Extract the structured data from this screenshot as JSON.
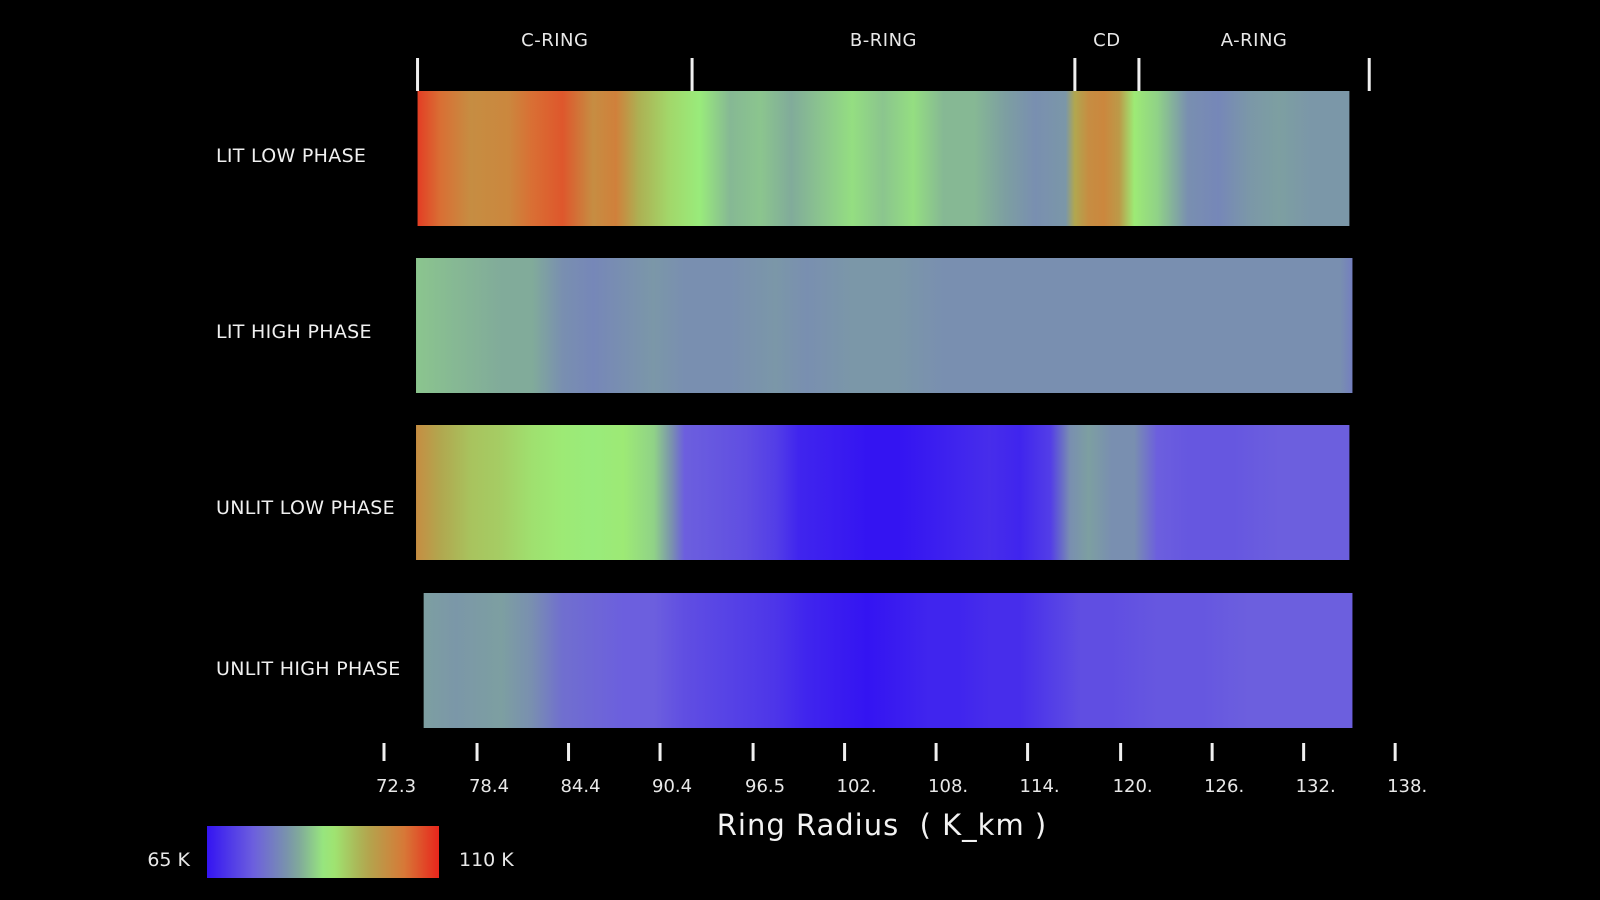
{
  "chart_data": {
    "type": "heatmap",
    "title": "",
    "xlabel": "Ring Radius  ( K_km )",
    "ylabel": "",
    "xlim": [
      72.3,
      138.0
    ],
    "x_ticks": [
      {
        "value": 72.3,
        "label": "72.3"
      },
      {
        "value": 78.4,
        "label": "78.4"
      },
      {
        "value": 84.4,
        "label": "84.4"
      },
      {
        "value": 90.4,
        "label": "90.4"
      },
      {
        "value": 96.5,
        "label": "96.5"
      },
      {
        "value": 102.5,
        "label": "102."
      },
      {
        "value": 108.5,
        "label": "108."
      },
      {
        "value": 114.5,
        "label": "114."
      },
      {
        "value": 120.6,
        "label": "120."
      },
      {
        "value": 126.6,
        "label": "126."
      },
      {
        "value": 132.6,
        "label": "132."
      },
      {
        "value": 138.6,
        "label": "138."
      }
    ],
    "regions": [
      {
        "name": "C-RING",
        "start": 74.5,
        "end": 92.5
      },
      {
        "name": "B-RING",
        "start": 92.5,
        "end": 117.6
      },
      {
        "name": "CD",
        "start": 117.6,
        "end": 121.8
      },
      {
        "name": "A-RING",
        "start": 121.8,
        "end": 136.9
      }
    ],
    "region_boundaries": [
      74.5,
      92.5,
      117.6,
      121.8,
      136.9
    ],
    "colorbar": {
      "min": 65,
      "max": 110,
      "unit": "K",
      "min_label": "65 K",
      "max_label": "110 K"
    },
    "rows": [
      {
        "name": "LIT LOW PHASE",
        "start": 74.5,
        "end": 135.6,
        "profile": [
          [
            74.5,
            108
          ],
          [
            76.0,
            104
          ],
          [
            78.0,
            100
          ],
          [
            80.5,
            101
          ],
          [
            82.0,
            104
          ],
          [
            84.0,
            106
          ],
          [
            86.0,
            100
          ],
          [
            87.5,
            102
          ],
          [
            89.0,
            95
          ],
          [
            91.0,
            91
          ],
          [
            93.0,
            88
          ],
          [
            95.0,
            84
          ],
          [
            97.0,
            85
          ],
          [
            99.0,
            83
          ],
          [
            101.0,
            85
          ],
          [
            103.0,
            87
          ],
          [
            105.0,
            85
          ],
          [
            107.0,
            87
          ],
          [
            109.0,
            84
          ],
          [
            111.0,
            84
          ],
          [
            113.0,
            82
          ],
          [
            115.0,
            80
          ],
          [
            117.0,
            81
          ],
          [
            117.6,
            96
          ],
          [
            118.5,
            100
          ],
          [
            119.5,
            101
          ],
          [
            120.5,
            98
          ],
          [
            121.5,
            89
          ],
          [
            123.0,
            86
          ],
          [
            125.0,
            80
          ],
          [
            127.0,
            79
          ],
          [
            129.0,
            81
          ],
          [
            131.0,
            82
          ],
          [
            133.0,
            81
          ],
          [
            135.6,
            81
          ]
        ]
      },
      {
        "name": "LIT HIGH PHASE",
        "start": 74.4,
        "end": 135.8,
        "profile": [
          [
            74.4,
            85
          ],
          [
            77.0,
            84
          ],
          [
            80.0,
            83
          ],
          [
            82.0,
            83
          ],
          [
            84.0,
            80
          ],
          [
            86.0,
            79
          ],
          [
            88.0,
            80
          ],
          [
            90.0,
            81
          ],
          [
            92.0,
            80
          ],
          [
            95.0,
            80
          ],
          [
            98.0,
            81
          ],
          [
            100.0,
            80
          ],
          [
            103.0,
            81
          ],
          [
            106.0,
            81
          ],
          [
            109.0,
            80
          ],
          [
            112.0,
            80
          ],
          [
            115.0,
            80
          ],
          [
            118.0,
            80
          ],
          [
            121.0,
            80
          ],
          [
            124.0,
            80
          ],
          [
            127.0,
            80
          ],
          [
            130.0,
            80
          ],
          [
            133.0,
            80
          ],
          [
            135.0,
            80
          ],
          [
            135.8,
            78
          ]
        ]
      },
      {
        "name": "UNLIT LOW PHASE",
        "start": 74.4,
        "end": 135.6,
        "profile": [
          [
            74.4,
            100
          ],
          [
            76.0,
            96
          ],
          [
            78.0,
            93
          ],
          [
            80.0,
            92
          ],
          [
            82.0,
            90
          ],
          [
            84.0,
            89
          ],
          [
            86.0,
            88
          ],
          [
            88.0,
            89
          ],
          [
            90.0,
            86
          ],
          [
            91.2,
            80
          ],
          [
            92.0,
            74
          ],
          [
            94.0,
            73
          ],
          [
            96.0,
            72
          ],
          [
            98.0,
            70
          ],
          [
            99.5,
            67
          ],
          [
            102.0,
            66
          ],
          [
            104.0,
            65
          ],
          [
            106.0,
            65
          ],
          [
            108.0,
            66
          ],
          [
            110.0,
            67
          ],
          [
            112.0,
            68
          ],
          [
            114.0,
            67
          ],
          [
            116.0,
            70
          ],
          [
            117.3,
            80
          ],
          [
            118.5,
            82
          ],
          [
            120.0,
            80
          ],
          [
            121.5,
            80
          ],
          [
            123.0,
            74
          ],
          [
            125.0,
            73
          ],
          [
            128.0,
            73
          ],
          [
            131.0,
            74
          ],
          [
            134.0,
            74
          ],
          [
            135.6,
            74
          ]
        ]
      },
      {
        "name": "UNLIT HIGH PHASE",
        "start": 74.9,
        "end": 135.8,
        "profile": [
          [
            74.9,
            82
          ],
          [
            77.0,
            81
          ],
          [
            80.0,
            82
          ],
          [
            82.0,
            80
          ],
          [
            84.0,
            76
          ],
          [
            86.0,
            75
          ],
          [
            88.0,
            74
          ],
          [
            90.0,
            74
          ],
          [
            92.0,
            72
          ],
          [
            94.0,
            71
          ],
          [
            96.0,
            70
          ],
          [
            98.0,
            69
          ],
          [
            100.0,
            67
          ],
          [
            102.0,
            66
          ],
          [
            104.0,
            65
          ],
          [
            106.0,
            66
          ],
          [
            108.0,
            67
          ],
          [
            110.0,
            67
          ],
          [
            112.0,
            68
          ],
          [
            114.0,
            68
          ],
          [
            116.0,
            70
          ],
          [
            118.0,
            72
          ],
          [
            120.0,
            72
          ],
          [
            123.0,
            73
          ],
          [
            126.0,
            73
          ],
          [
            129.0,
            74
          ],
          [
            132.0,
            74
          ],
          [
            135.8,
            74
          ]
        ]
      }
    ]
  }
}
